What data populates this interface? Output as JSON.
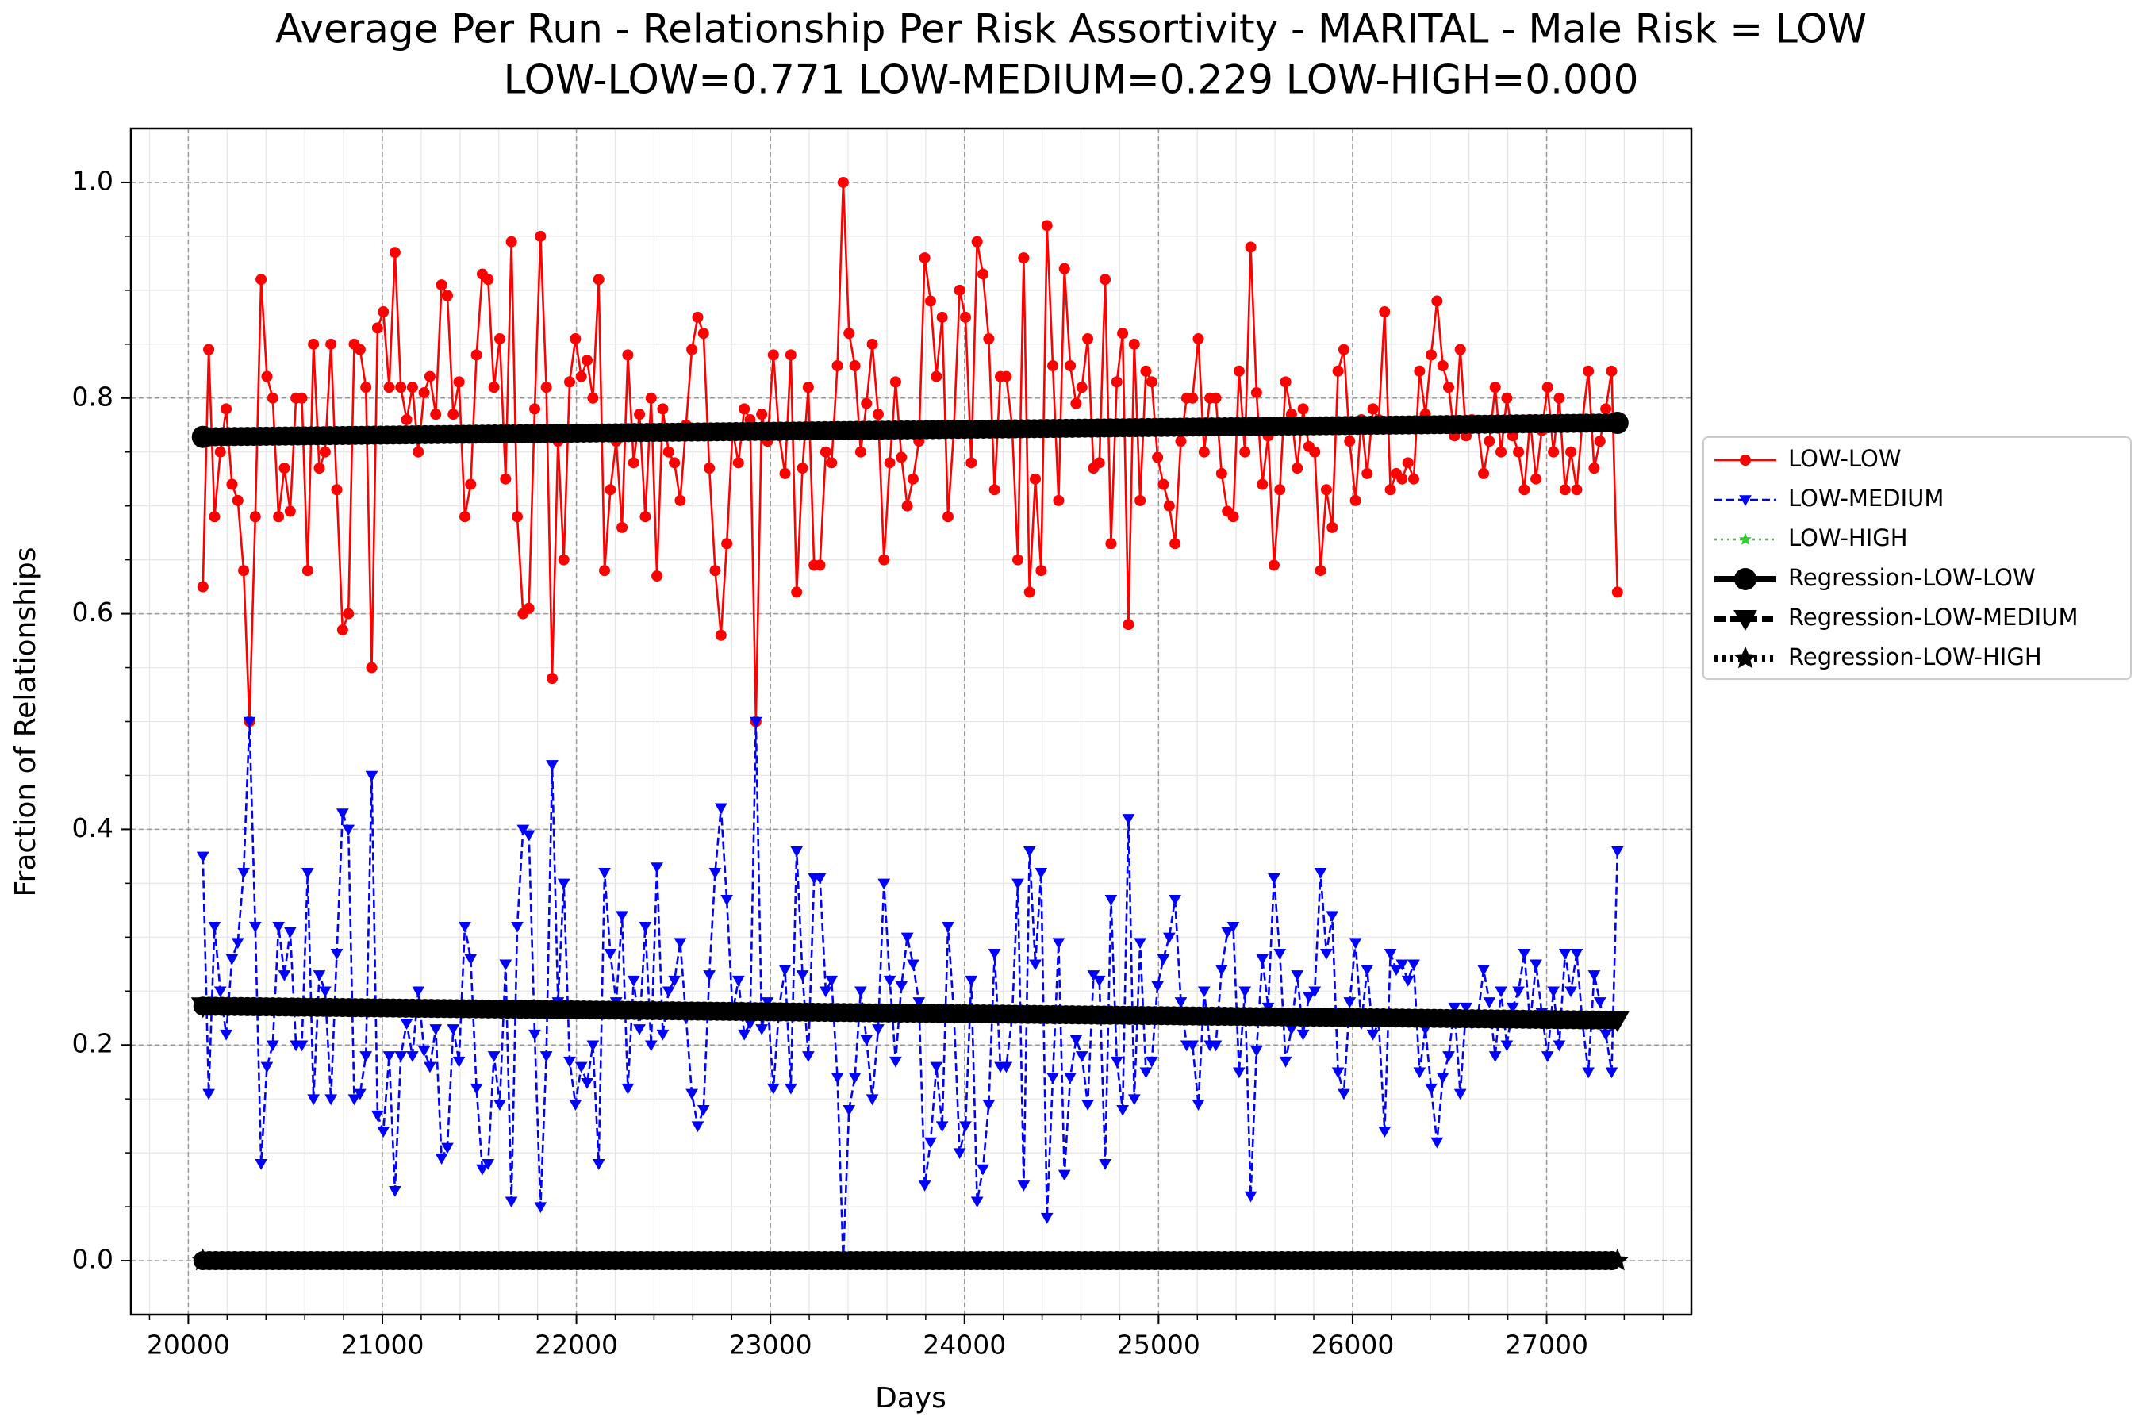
{
  "chart_data": {
    "type": "line",
    "title": "Average Per Run - Relationship Per Risk Assortivity - MARITAL - Male Risk = LOW",
    "subtitle": "LOW-LOW=0.771 LOW-MEDIUM=0.229 LOW-HIGH=0.000",
    "x_label": "Days",
    "y_label": "Fraction of Relationships",
    "xlim": [
      19704,
      27746
    ],
    "ylim": [
      -0.05,
      1.05
    ],
    "xticks": [
      20000,
      21000,
      22000,
      23000,
      24000,
      25000,
      26000,
      27000
    ],
    "yticks": [
      {
        "value": 0,
        "label": "0.0"
      },
      0.2,
      0.4,
      0.6,
      0.8,
      {
        "value": 1,
        "label": "1.0"
      }
    ],
    "grid": true,
    "minor_grid": true,
    "legend": "outside-right",
    "x": [
      20075,
      20105,
      20135,
      20165,
      20195,
      20225,
      20255,
      20285,
      20315,
      20345,
      20375,
      20405,
      20435,
      20465,
      20495,
      20525,
      20555,
      20585,
      20615,
      20645,
      20675,
      20705,
      20735,
      20765,
      20795,
      20825,
      20855,
      20885,
      20915,
      20945,
      20975,
      21005,
      21035,
      21065,
      21095,
      21125,
      21155,
      21185,
      21215,
      21245,
      21275,
      21305,
      21335,
      21365,
      21395,
      21425,
      21455,
      21485,
      21515,
      21545,
      21575,
      21605,
      21635,
      21665,
      21695,
      21725,
      21755,
      21785,
      21815,
      21845,
      21875,
      21905,
      21935,
      21965,
      21995,
      22025,
      22055,
      22085,
      22115,
      22145,
      22175,
      22205,
      22235,
      22265,
      22295,
      22325,
      22355,
      22385,
      22415,
      22445,
      22475,
      22505,
      22535,
      22565,
      22595,
      22625,
      22655,
      22685,
      22715,
      22745,
      22775,
      22805,
      22835,
      22865,
      22895,
      22925,
      22955,
      22985,
      23015,
      23045,
      23075,
      23105,
      23135,
      23165,
      23195,
      23225,
      23255,
      23285,
      23315,
      23345,
      23375,
      23405,
      23435,
      23465,
      23495,
      23525,
      23555,
      23585,
      23615,
      23645,
      23675,
      23705,
      23735,
      23765,
      23795,
      23825,
      23855,
      23885,
      23915,
      23945,
      23975,
      24005,
      24035,
      24065,
      24095,
      24125,
      24155,
      24185,
      24215,
      24245,
      24275,
      24305,
      24335,
      24365,
      24395,
      24425,
      24455,
      24485,
      24515,
      24545,
      24575,
      24605,
      24635,
      24665,
      24695,
      24725,
      24755,
      24785,
      24815,
      24845,
      24875,
      24905,
      24935,
      24965,
      24995,
      25025,
      25055,
      25085,
      25115,
      25145,
      25175,
      25205,
      25235,
      25265,
      25295,
      25325,
      25355,
      25385,
      25415,
      25445,
      25475,
      25505,
      25535,
      25565,
      25595,
      25625,
      25655,
      25685,
      25715,
      25745,
      25775,
      25805,
      25835,
      25865,
      25895,
      25925,
      25955,
      25985,
      26015,
      26045,
      26075,
      26105,
      26135,
      26165,
      26195,
      26225,
      26255,
      26285,
      26315,
      26345,
      26375,
      26405,
      26435,
      26465,
      26495,
      26525,
      26555,
      26585,
      26615,
      26645,
      26675,
      26705,
      26735,
      26765,
      26795,
      26825,
      26855,
      26885,
      26915,
      26945,
      26975,
      27005,
      27035,
      27065,
      27095,
      27125,
      27155,
      27185,
      27215,
      27245,
      27275,
      27305,
      27335,
      27365
    ],
    "series": [
      {
        "name": "LOW-LOW",
        "color": "#ff0000",
        "linestyle": "solid",
        "marker": "circle",
        "values": [
          0.625,
          0.845,
          0.69,
          0.75,
          0.79,
          0.72,
          0.705,
          0.64,
          0.5,
          0.69,
          0.91,
          0.82,
          0.8,
          0.69,
          0.735,
          0.695,
          0.8,
          0.8,
          0.64,
          0.85,
          0.735,
          0.75,
          0.85,
          0.715,
          0.585,
          0.6,
          0.85,
          0.845,
          0.81,
          0.55,
          0.865,
          0.88,
          0.81,
          0.935,
          0.81,
          0.78,
          0.81,
          0.75,
          0.805,
          0.82,
          0.785,
          0.905,
          0.895,
          0.785,
          0.815,
          0.69,
          0.72,
          0.84,
          0.915,
          0.91,
          0.81,
          0.855,
          0.725,
          0.945,
          0.69,
          0.6,
          0.605,
          0.79,
          0.95,
          0.81,
          0.54,
          0.76,
          0.65,
          0.815,
          0.855,
          0.82,
          0.835,
          0.8,
          0.91,
          0.64,
          0.715,
          0.76,
          0.68,
          0.84,
          0.74,
          0.785,
          0.69,
          0.8,
          0.635,
          0.79,
          0.75,
          0.74,
          0.705,
          0.775,
          0.845,
          0.875,
          0.86,
          0.735,
          0.64,
          0.58,
          0.665,
          0.77,
          0.74,
          0.79,
          0.78,
          0.5,
          0.785,
          0.76,
          0.84,
          0.765,
          0.73,
          0.84,
          0.62,
          0.735,
          0.81,
          0.645,
          0.645,
          0.75,
          0.74,
          0.83,
          1.0,
          0.86,
          0.83,
          0.75,
          0.795,
          0.85,
          0.785,
          0.65,
          0.74,
          0.815,
          0.745,
          0.7,
          0.725,
          0.76,
          0.93,
          0.89,
          0.82,
          0.875,
          0.69,
          0.77,
          0.9,
          0.875,
          0.74,
          0.945,
          0.915,
          0.855,
          0.715,
          0.82,
          0.82,
          0.775,
          0.65,
          0.93,
          0.62,
          0.725,
          0.64,
          0.96,
          0.83,
          0.705,
          0.92,
          0.83,
          0.795,
          0.81,
          0.855,
          0.735,
          0.74,
          0.91,
          0.665,
          0.815,
          0.86,
          0.59,
          0.85,
          0.705,
          0.825,
          0.815,
          0.745,
          0.72,
          0.7,
          0.665,
          0.76,
          0.8,
          0.8,
          0.855,
          0.75,
          0.8,
          0.8,
          0.73,
          0.695,
          0.69,
          0.825,
          0.75,
          0.94,
          0.805,
          0.72,
          0.765,
          0.645,
          0.715,
          0.815,
          0.785,
          0.735,
          0.79,
          0.755,
          0.75,
          0.64,
          0.715,
          0.68,
          0.825,
          0.845,
          0.76,
          0.705,
          0.78,
          0.73,
          0.79,
          0.78,
          0.88,
          0.715,
          0.73,
          0.725,
          0.74,
          0.725,
          0.825,
          0.785,
          0.84,
          0.89,
          0.83,
          0.81,
          0.765,
          0.845,
          0.765,
          0.78,
          0.775,
          0.73,
          0.76,
          0.81,
          0.75,
          0.8,
          0.765,
          0.75,
          0.715,
          0.78,
          0.725,
          0.77,
          0.81,
          0.75,
          0.8,
          0.715,
          0.75,
          0.715,
          0.78,
          0.825,
          0.735,
          0.76,
          0.79,
          0.825,
          0.62
        ]
      },
      {
        "name": "LOW-MEDIUM",
        "color": "#0000ff",
        "linestyle": "dashed",
        "marker": "triangle-down",
        "values": [
          0.375,
          0.155,
          0.31,
          0.25,
          0.21,
          0.28,
          0.295,
          0.36,
          0.5,
          0.31,
          0.09,
          0.18,
          0.2,
          0.31,
          0.265,
          0.305,
          0.2,
          0.2,
          0.36,
          0.15,
          0.265,
          0.25,
          0.15,
          0.285,
          0.415,
          0.4,
          0.15,
          0.155,
          0.19,
          0.45,
          0.135,
          0.12,
          0.19,
          0.065,
          0.19,
          0.22,
          0.19,
          0.25,
          0.195,
          0.18,
          0.215,
          0.095,
          0.105,
          0.215,
          0.185,
          0.31,
          0.28,
          0.16,
          0.085,
          0.09,
          0.19,
          0.145,
          0.275,
          0.055,
          0.31,
          0.4,
          0.395,
          0.21,
          0.05,
          0.19,
          0.46,
          0.24,
          0.35,
          0.185,
          0.145,
          0.18,
          0.165,
          0.2,
          0.09,
          0.36,
          0.285,
          0.24,
          0.32,
          0.16,
          0.26,
          0.215,
          0.31,
          0.2,
          0.365,
          0.21,
          0.25,
          0.26,
          0.295,
          0.225,
          0.155,
          0.125,
          0.14,
          0.265,
          0.36,
          0.42,
          0.335,
          0.23,
          0.26,
          0.21,
          0.22,
          0.5,
          0.215,
          0.24,
          0.16,
          0.235,
          0.27,
          0.16,
          0.38,
          0.265,
          0.19,
          0.355,
          0.355,
          0.25,
          0.26,
          0.17,
          0.0,
          0.14,
          0.17,
          0.25,
          0.205,
          0.15,
          0.215,
          0.35,
          0.26,
          0.185,
          0.255,
          0.3,
          0.275,
          0.24,
          0.07,
          0.11,
          0.18,
          0.125,
          0.31,
          0.23,
          0.1,
          0.125,
          0.26,
          0.055,
          0.085,
          0.145,
          0.285,
          0.18,
          0.18,
          0.225,
          0.35,
          0.07,
          0.38,
          0.275,
          0.36,
          0.04,
          0.17,
          0.295,
          0.08,
          0.17,
          0.205,
          0.19,
          0.145,
          0.265,
          0.26,
          0.09,
          0.335,
          0.185,
          0.14,
          0.41,
          0.15,
          0.295,
          0.175,
          0.185,
          0.255,
          0.28,
          0.3,
          0.335,
          0.24,
          0.2,
          0.2,
          0.145,
          0.25,
          0.2,
          0.2,
          0.27,
          0.305,
          0.31,
          0.175,
          0.25,
          0.06,
          0.195,
          0.28,
          0.235,
          0.355,
          0.285,
          0.185,
          0.215,
          0.265,
          0.21,
          0.245,
          0.25,
          0.36,
          0.285,
          0.32,
          0.175,
          0.155,
          0.24,
          0.295,
          0.22,
          0.27,
          0.21,
          0.22,
          0.12,
          0.285,
          0.27,
          0.275,
          0.26,
          0.275,
          0.175,
          0.215,
          0.16,
          0.11,
          0.17,
          0.19,
          0.235,
          0.155,
          0.235,
          0.22,
          0.225,
          0.27,
          0.24,
          0.19,
          0.25,
          0.2,
          0.235,
          0.25,
          0.285,
          0.22,
          0.275,
          0.23,
          0.19,
          0.25,
          0.2,
          0.285,
          0.25,
          0.285,
          0.22,
          0.175,
          0.265,
          0.24,
          0.21,
          0.175,
          0.38
        ]
      },
      {
        "name": "LOW-HIGH",
        "color": "#32cd32",
        "linestyle": "dotted",
        "marker": "star",
        "values": [
          0,
          0,
          0,
          0,
          0,
          0,
          0,
          0,
          0,
          0,
          0,
          0,
          0,
          0,
          0,
          0,
          0,
          0,
          0,
          0,
          0,
          0,
          0,
          0,
          0,
          0,
          0,
          0,
          0,
          0,
          0,
          0,
          0,
          0,
          0,
          0,
          0,
          0,
          0,
          0,
          0,
          0,
          0,
          0,
          0,
          0,
          0,
          0,
          0,
          0,
          0,
          0,
          0,
          0,
          0,
          0,
          0,
          0,
          0,
          0,
          0,
          0,
          0,
          0,
          0,
          0,
          0,
          0,
          0,
          0,
          0,
          0,
          0,
          0,
          0,
          0,
          0,
          0,
          0,
          0,
          0,
          0,
          0,
          0,
          0,
          0,
          0,
          0,
          0,
          0,
          0,
          0,
          0,
          0,
          0,
          0,
          0,
          0,
          0,
          0,
          0,
          0,
          0,
          0,
          0,
          0,
          0,
          0,
          0,
          0,
          0,
          0,
          0,
          0,
          0,
          0,
          0,
          0,
          0,
          0,
          0,
          0,
          0,
          0,
          0,
          0,
          0,
          0,
          0,
          0,
          0,
          0,
          0,
          0,
          0,
          0,
          0,
          0,
          0,
          0,
          0,
          0,
          0,
          0,
          0,
          0,
          0,
          0,
          0,
          0,
          0,
          0,
          0,
          0,
          0,
          0,
          0,
          0,
          0,
          0,
          0,
          0,
          0,
          0,
          0,
          0,
          0,
          0,
          0,
          0,
          0,
          0,
          0,
          0,
          0,
          0,
          0,
          0,
          0,
          0,
          0,
          0,
          0,
          0,
          0,
          0,
          0,
          0,
          0,
          0,
          0,
          0,
          0,
          0,
          0,
          0,
          0,
          0,
          0,
          0,
          0,
          0,
          0,
          0,
          0,
          0,
          0,
          0,
          0,
          0,
          0,
          0,
          0,
          0,
          0,
          0,
          0,
          0,
          0,
          0,
          0,
          0,
          0,
          0,
          0,
          0,
          0,
          0,
          0,
          0,
          0,
          0,
          0,
          0,
          0,
          0,
          0,
          0,
          0,
          0,
          0,
          0,
          0,
          0
        ]
      },
      {
        "name": "Regression-LOW-LOW",
        "color": "#000000",
        "linestyle": "solid",
        "marker": "circle",
        "regression": true,
        "x": [
          20075,
          27365
        ],
        "values": [
          0.764,
          0.777
        ]
      },
      {
        "name": "Regression-LOW-MEDIUM",
        "color": "#000000",
        "linestyle": "dashed",
        "marker": "triangle-down",
        "regression": true,
        "x": [
          20075,
          27365
        ],
        "values": [
          0.236,
          0.223
        ]
      },
      {
        "name": "Regression-LOW-HIGH",
        "color": "#000000",
        "linestyle": "dotted",
        "marker": "star",
        "regression": true,
        "x": [
          20075,
          27365
        ],
        "values": [
          0,
          0
        ]
      }
    ]
  }
}
